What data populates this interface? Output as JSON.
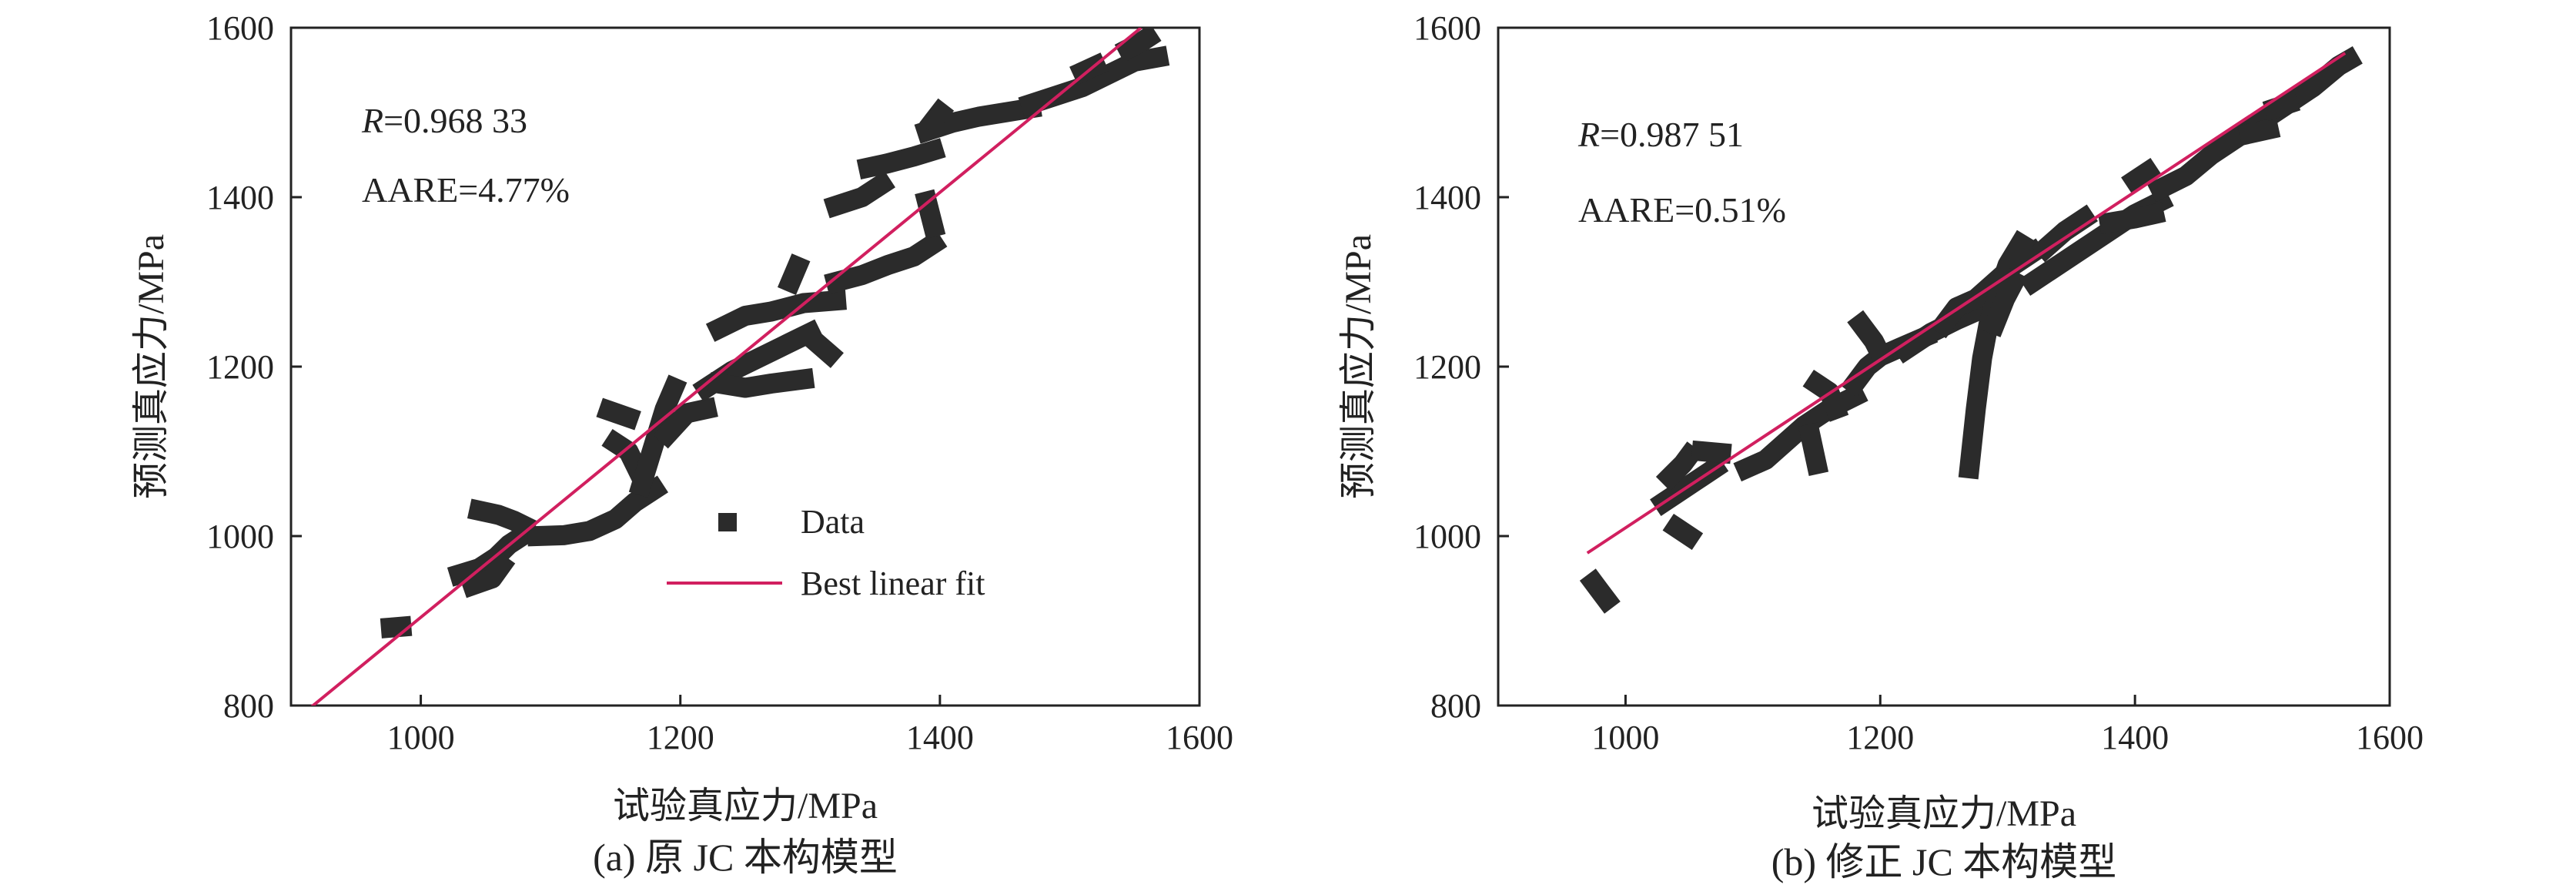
{
  "chart_data": [
    {
      "type": "scatter",
      "caption": "(a) 原 JC 本构模型",
      "xlabel": "试验真应力/MPa",
      "ylabel": "预测真应力/MPa",
      "xlim": [
        900,
        1600
      ],
      "ylim": [
        800,
        1600
      ],
      "xticks": [
        1000,
        1200,
        1400,
        1600
      ],
      "yticks": [
        800,
        1000,
        1200,
        1400,
        1600
      ],
      "stats": {
        "r_symbol": "R",
        "r_value": "=0.968 33",
        "aare": "AARE=4.77%"
      },
      "legend": {
        "position": "center-right",
        "items": [
          "Data",
          "Best linear fit"
        ]
      },
      "fit_line": {
        "x": [
          913,
          1555
        ],
        "y": [
          795,
          1600
        ]
      },
      "series": [
        {
          "name": "Data",
          "segments": [
            [
              [
                977,
                892
              ],
              [
                985,
                893
              ]
            ],
            [
              [
                1030,
                955
              ],
              [
                1045,
                962
              ],
              [
                1058,
                975
              ],
              [
                1068,
                990
              ],
              [
                1078,
                1000
              ]
            ],
            [
              [
                1045,
                1030
              ],
              [
                1060,
                1025
              ],
              [
                1072,
                1018
              ],
              [
                1080,
                1012
              ]
            ],
            [
              [
                1040,
                942
              ],
              [
                1055,
                950
              ],
              [
                1062,
                965
              ]
            ],
            [
              [
                1090,
                1000
              ],
              [
                1110,
                1001
              ],
              [
                1130,
                1006
              ],
              [
                1150,
                1020
              ],
              [
                1165,
                1040
              ],
              [
                1180,
                1055
              ]
            ],
            [
              [
                1145,
                1148
              ],
              [
                1160,
                1140
              ]
            ],
            [
              [
                1150,
                1110
              ],
              [
                1160,
                1100
              ],
              [
                1168,
                1075
              ]
            ],
            [
              [
                1170,
                1060
              ],
              [
                1180,
                1110
              ],
              [
                1188,
                1150
              ],
              [
                1195,
                1175
              ]
            ],
            [
              [
                1190,
                1120
              ],
              [
                1205,
                1145
              ],
              [
                1220,
                1150
              ]
            ],
            [
              [
                1220,
                1175
              ],
              [
                1240,
                1195
              ],
              [
                1260,
                1210
              ],
              [
                1280,
                1225
              ],
              [
                1300,
                1240
              ]
            ],
            [
              [
                1230,
                1180
              ],
              [
                1250,
                1175
              ],
              [
                1270,
                1180
              ],
              [
                1295,
                1185
              ]
            ],
            [
              [
                1230,
                1245
              ],
              [
                1250,
                1260
              ],
              [
                1270,
                1265
              ],
              [
                1295,
                1275
              ],
              [
                1320,
                1278
              ]
            ],
            [
              [
                1285,
                1300
              ],
              [
                1290,
                1318
              ]
            ],
            [
              [
                1300,
                1235
              ],
              [
                1315,
                1215
              ]
            ],
            [
              [
                1320,
                1300
              ],
              [
                1340,
                1308
              ],
              [
                1360,
                1320
              ],
              [
                1380,
                1330
              ],
              [
                1395,
                1345
              ]
            ],
            [
              [
                1390,
                1395
              ],
              [
                1395,
                1365
              ]
            ],
            [
              [
                1320,
                1390
              ],
              [
                1340,
                1400
              ],
              [
                1355,
                1415
              ]
            ],
            [
              [
                1345,
                1435
              ],
              [
                1360,
                1440
              ],
              [
                1380,
                1448
              ],
              [
                1395,
                1455
              ]
            ],
            [
              [
                1390,
                1478
              ],
              [
                1410,
                1488
              ],
              [
                1430,
                1495
              ],
              [
                1450,
                1500
              ],
              [
                1470,
                1505
              ]
            ],
            [
              [
                1395,
                1490
              ],
              [
                1400,
                1500
              ]
            ],
            [
              [
                1470,
                1510
              ],
              [
                1490,
                1520
              ],
              [
                1510,
                1530
              ],
              [
                1530,
                1545
              ],
              [
                1550,
                1560
              ],
              [
                1568,
                1565
              ]
            ],
            [
              [
                1545,
                1575
              ],
              [
                1555,
                1583
              ],
              [
                1560,
                1588
              ]
            ],
            [
              [
                1510,
                1548
              ],
              [
                1520,
                1555
              ]
            ]
          ]
        }
      ]
    },
    {
      "type": "scatter",
      "caption": "(b) 修正 JC 本构模型",
      "xlabel": "试验真应力/MPa",
      "ylabel": "预测真应力/MPa",
      "xlim": [
        900,
        1600
      ],
      "ylim": [
        800,
        1600
      ],
      "xticks": [
        1000,
        1200,
        1400,
        1600
      ],
      "yticks": [
        800,
        1000,
        1200,
        1400,
        1600
      ],
      "stats": {
        "r_symbol": "R",
        "r_value": "=0.987 51",
        "aare": "AARE=0.51%"
      },
      "fit_line": {
        "x": [
          970,
          1565
        ],
        "y": [
          980,
          1570
        ]
      },
      "series": [
        {
          "name": "Data",
          "segments": [
            [
              [
                975,
                945
              ],
              [
                980,
                935
              ],
              [
                985,
                925
              ]
            ],
            [
              [
                1030,
                1040
              ],
              [
                1040,
                1050
              ],
              [
                1050,
                1060
              ],
              [
                1060,
                1070
              ],
              [
                1070,
                1080
              ]
            ],
            [
              [
                1035,
                1070
              ],
              [
                1045,
                1085
              ],
              [
                1050,
                1095
              ]
            ],
            [
              [
                1040,
                1010
              ],
              [
                1050,
                1000
              ]
            ],
            [
              [
                1060,
                1100
              ],
              [
                1075,
                1098
              ]
            ],
            [
              [
                1095,
                1080
              ],
              [
                1110,
                1090
              ],
              [
                1125,
                1110
              ],
              [
                1140,
                1130
              ],
              [
                1160,
                1150
              ],
              [
                1180,
                1165
              ]
            ],
            [
              [
                1150,
                1180
              ],
              [
                1160,
                1170
              ],
              [
                1165,
                1150
              ]
            ],
            [
              [
                1145,
                1120
              ],
              [
                1150,
                1085
              ]
            ],
            [
              [
                1180,
                1180
              ],
              [
                1190,
                1200
              ],
              [
                1200,
                1212
              ],
              [
                1215,
                1222
              ],
              [
                1235,
                1235
              ]
            ],
            [
              [
                1185,
                1250
              ],
              [
                1195,
                1230
              ],
              [
                1200,
                1215
              ]
            ],
            [
              [
                1220,
                1220
              ],
              [
                1240,
                1240
              ],
              [
                1260,
                1255
              ],
              [
                1275,
                1265
              ]
            ],
            [
              [
                1250,
                1250
              ],
              [
                1260,
                1270
              ],
              [
                1275,
                1280
              ],
              [
                1290,
                1300
              ],
              [
                1305,
                1320
              ],
              [
                1320,
                1335
              ]
            ],
            [
              [
                1270,
                1080
              ],
              [
                1275,
                1150
              ],
              [
                1280,
                1210
              ],
              [
                1285,
                1250
              ],
              [
                1292,
                1285
              ],
              [
                1300,
                1320
              ],
              [
                1310,
                1345
              ]
            ],
            [
              [
                1290,
                1250
              ],
              [
                1298,
                1280
              ],
              [
                1305,
                1300
              ]
            ],
            [
              [
                1320,
                1300
              ],
              [
                1340,
                1320
              ],
              [
                1360,
                1340
              ],
              [
                1380,
                1360
              ],
              [
                1400,
                1380
              ],
              [
                1420,
                1395
              ]
            ],
            [
              [
                1330,
                1340
              ],
              [
                1345,
                1360
              ],
              [
                1360,
                1375
              ]
            ],
            [
              [
                1400,
                1420
              ],
              [
                1410,
                1430
              ]
            ],
            [
              [
                1380,
                1370
              ],
              [
                1400,
                1375
              ],
              [
                1415,
                1380
              ]
            ],
            [
              [
                1420,
                1410
              ],
              [
                1440,
                1425
              ],
              [
                1460,
                1450
              ],
              [
                1480,
                1470
              ],
              [
                1500,
                1490
              ],
              [
                1520,
                1510
              ],
              [
                1540,
                1530
              ],
              [
                1560,
                1555
              ],
              [
                1568,
                1562
              ]
            ],
            [
              [
                1490,
                1475
              ],
              [
                1505,
                1480
              ]
            ],
            [
              [
                1510,
                1505
              ],
              [
                1520,
                1510
              ]
            ]
          ]
        }
      ]
    }
  ]
}
